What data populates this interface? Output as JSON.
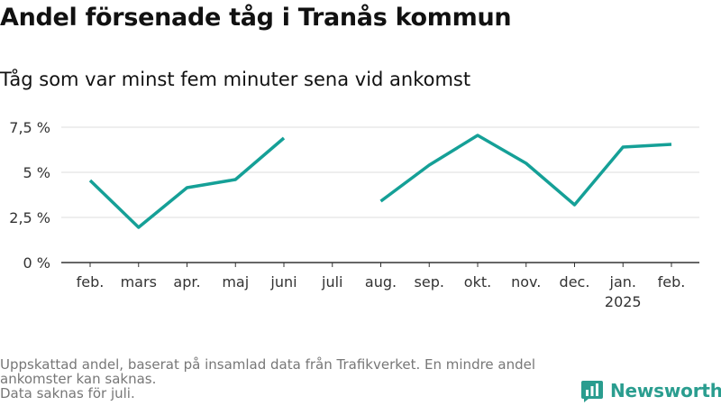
{
  "title": "Andel försenade tåg i Tranås kommun",
  "subtitle": "Tåg som var minst fem minuter sena vid ankomst",
  "footnote": [
    "Uppskattad andel, baserat på insamlad data från Trafikverket. En mindre andel ankomster kan saknas.",
    "Data saknas för juli."
  ],
  "brand": {
    "name": "Newsworthy",
    "color": "#2a9d8f",
    "icon": "bar-chart-logo-icon"
  },
  "chart_data": {
    "type": "line",
    "categories": [
      "feb.",
      "mars",
      "apr.",
      "maj",
      "juni",
      "juli",
      "aug.",
      "sep.",
      "okt.",
      "nov.",
      "dec.",
      "jan.",
      "feb."
    ],
    "category_sublabels": [
      "",
      "",
      "",
      "",
      "",
      "",
      "",
      "",
      "",
      "",
      "",
      "2025",
      ""
    ],
    "series": [
      {
        "color": "#15a097",
        "values": [
          4.55,
          1.95,
          4.15,
          4.6,
          6.9,
          null,
          3.4,
          5.4,
          7.05,
          5.5,
          3.2,
          6.4,
          6.55
        ]
      }
    ],
    "ylim": [
      0,
      7.5
    ],
    "yticks": [
      0,
      2.5,
      5,
      7.5
    ],
    "ytick_labels": [
      "0 %",
      "2,5 %",
      "5 %",
      "7,5 %"
    ],
    "grid": true,
    "legend": "none",
    "xlabel": "",
    "ylabel": ""
  }
}
